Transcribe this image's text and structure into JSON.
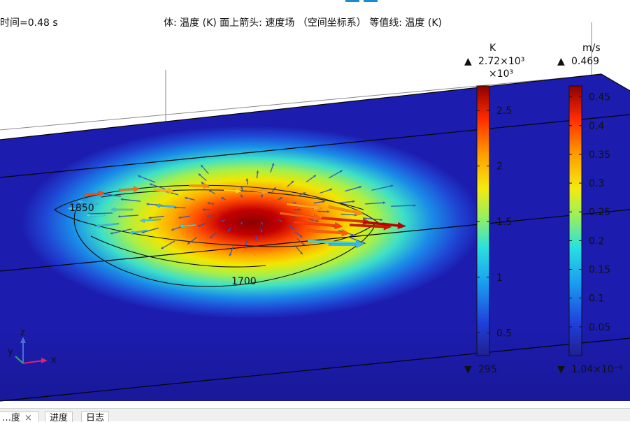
{
  "header": {
    "time_label": "时间=0.48 s",
    "plot_description": "体: 温度 (K)  面上箭头: 速度场 （空间坐标系）  等值线: 温度 (K)"
  },
  "chart_data": {
    "type": "heatmap",
    "contours": [
      {
        "value": 1850,
        "label": "1850"
      },
      {
        "value": 1700,
        "label": "1700"
      }
    ],
    "colorbars": [
      {
        "name": "temperature",
        "unit": "K",
        "max_label": "2.72×10³",
        "multiplier": "×10³",
        "min_label": "295",
        "min": 295,
        "max": 2720,
        "ticks": [
          0.5,
          1,
          1.5,
          2,
          2.5
        ],
        "tick_labels": [
          "0.5",
          "1",
          "1.5",
          "2",
          "2.5"
        ]
      },
      {
        "name": "velocity",
        "unit": "m/s",
        "max_label": "0.469",
        "min_label": "1.04×10⁻⁶",
        "min": 1.04e-06,
        "max": 0.469,
        "ticks": [
          0.05,
          0.1,
          0.15,
          0.2,
          0.25,
          0.3,
          0.35,
          0.4,
          0.45
        ],
        "tick_labels": [
          "0.05",
          "0.1",
          "0.15",
          "0.2",
          "0.25",
          "0.3",
          "0.35",
          "0.4",
          "0.45"
        ]
      }
    ],
    "axes_triad": {
      "z": "z",
      "y": "y",
      "x": "x"
    },
    "colormap": "rainbow",
    "colors": {
      "hot": "#a00000",
      "cold": "#1c1cae"
    }
  },
  "tabs": [
    {
      "label": "…度",
      "closable": true
    },
    {
      "label": "进度",
      "closable": false
    },
    {
      "label": "日志",
      "closable": false
    }
  ]
}
